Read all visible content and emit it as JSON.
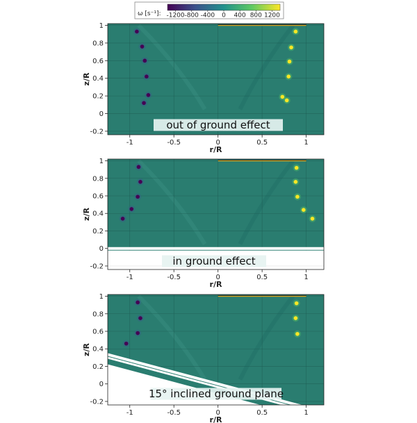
{
  "colorbar": {
    "label": "ω [s⁻¹]:",
    "ticks": [
      "-1200",
      "-800",
      "-400",
      "0",
      "400",
      "800",
      "1200"
    ],
    "range": [
      -1400,
      1400
    ],
    "colors": [
      "#440154",
      "#3b528b",
      "#21918c",
      "#5ec962",
      "#fde725"
    ]
  },
  "field_color": "#2a7d70",
  "ground_color": "#ffffff",
  "chart_data": [
    {
      "type": "heatmap",
      "caption": "out of ground effect",
      "xlabel": "r/R",
      "ylabel": "z/R",
      "xlim": [
        -1.25,
        1.2
      ],
      "ylim": [
        -0.24,
        1.02
      ],
      "xticks": [
        "-1",
        "-0.5",
        "0",
        "0.5",
        "1"
      ],
      "yticks": [
        "-0.2",
        "0",
        "0.2",
        "0.4",
        "0.6",
        "0.8",
        "1"
      ],
      "grid": true,
      "ground": null,
      "vortices_negative": [
        {
          "x": -0.92,
          "y": 0.93
        },
        {
          "x": -0.86,
          "y": 0.76
        },
        {
          "x": -0.83,
          "y": 0.6
        },
        {
          "x": -0.81,
          "y": 0.42
        },
        {
          "x": -0.79,
          "y": 0.21
        },
        {
          "x": -0.84,
          "y": 0.12
        }
      ],
      "vortices_positive": [
        {
          "x": 0.88,
          "y": 0.93
        },
        {
          "x": 0.83,
          "y": 0.75
        },
        {
          "x": 0.81,
          "y": 0.59
        },
        {
          "x": 0.8,
          "y": 0.42
        },
        {
          "x": 0.73,
          "y": 0.19
        },
        {
          "x": 0.78,
          "y": 0.15
        }
      ]
    },
    {
      "type": "heatmap",
      "caption": "in ground effect",
      "xlabel": "r/R",
      "ylabel": "z/R",
      "xlim": [
        -1.25,
        1.2
      ],
      "ylim": [
        -0.24,
        1.02
      ],
      "xticks": [
        "-1",
        "-0.5",
        "0",
        "0.5",
        "1"
      ],
      "yticks": [
        "-0.2",
        "0",
        "0.2",
        "0.4",
        "0.6",
        "0.8",
        "1"
      ],
      "grid": true,
      "ground": {
        "type": "flat",
        "z": 0
      },
      "vortices_negative": [
        {
          "x": -0.9,
          "y": 0.93
        },
        {
          "x": -0.88,
          "y": 0.76
        },
        {
          "x": -0.91,
          "y": 0.59
        },
        {
          "x": -0.98,
          "y": 0.45
        },
        {
          "x": -1.08,
          "y": 0.34
        }
      ],
      "vortices_positive": [
        {
          "x": 0.89,
          "y": 0.92
        },
        {
          "x": 0.88,
          "y": 0.76
        },
        {
          "x": 0.9,
          "y": 0.59
        },
        {
          "x": 0.97,
          "y": 0.44
        },
        {
          "x": 1.07,
          "y": 0.34
        }
      ]
    },
    {
      "type": "heatmap",
      "caption": "15° inclined ground plane",
      "xlabel": "r/R",
      "ylabel": "z/R",
      "xlim": [
        -1.25,
        1.2
      ],
      "ylim": [
        -0.24,
        1.02
      ],
      "xticks": [
        "-1",
        "-0.5",
        "0",
        "0.5",
        "1"
      ],
      "yticks": [
        "-0.2",
        "0",
        "0.2",
        "0.4",
        "0.6",
        "0.8",
        "1"
      ],
      "grid": true,
      "ground": {
        "type": "inclined",
        "angle_deg": 15,
        "z_at_r0": 0.0
      },
      "vortices_negative": [
        {
          "x": -0.91,
          "y": 0.93
        },
        {
          "x": -0.88,
          "y": 0.75
        },
        {
          "x": -0.91,
          "y": 0.58
        },
        {
          "x": -1.04,
          "y": 0.46
        }
      ],
      "vortices_positive": [
        {
          "x": 0.89,
          "y": 0.92
        },
        {
          "x": 0.88,
          "y": 0.75
        },
        {
          "x": 0.9,
          "y": 0.57
        }
      ]
    }
  ]
}
